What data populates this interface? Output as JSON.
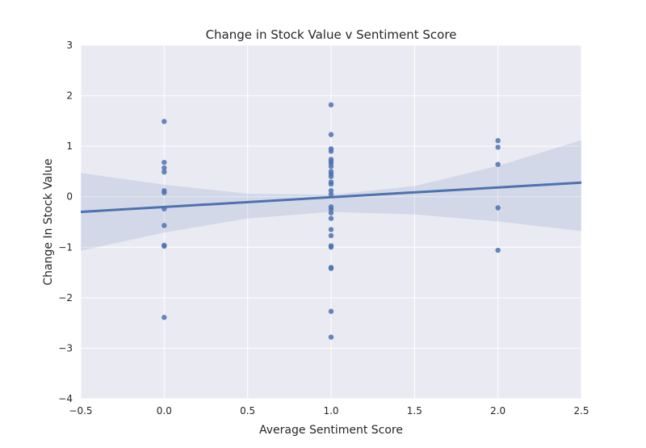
{
  "chart_data": {
    "type": "scatter",
    "title": "Change in Stock Value v Sentiment Score",
    "xlabel": "Average Sentiment Score",
    "ylabel": "Change In Stock Value",
    "xlim": [
      -0.5,
      2.5
    ],
    "ylim": [
      -4,
      3
    ],
    "x_ticks": [
      -0.5,
      0.0,
      0.5,
      1.0,
      1.5,
      2.0,
      2.5
    ],
    "x_tick_labels": [
      "−0.5",
      "0.0",
      "0.5",
      "1.0",
      "1.5",
      "2.0",
      "2.5"
    ],
    "y_ticks": [
      -4,
      -3,
      -2,
      -1,
      0,
      1,
      2,
      3
    ],
    "y_tick_labels": [
      "−4",
      "−3",
      "−2",
      "−1",
      "0",
      "1",
      "2",
      "3"
    ],
    "grid": true,
    "colors": {
      "background": "#eaeaf2",
      "grid": "#ffffff",
      "points": "#4c72b0",
      "fit_line": "#4c72b0",
      "ci_band": "#4c72b0"
    },
    "points": [
      {
        "x": 0,
        "y": 1.49
      },
      {
        "x": 0,
        "y": 0.68
      },
      {
        "x": 0,
        "y": 0.57
      },
      {
        "x": 0,
        "y": 0.49
      },
      {
        "x": 0,
        "y": 0.12
      },
      {
        "x": 0,
        "y": 0.08
      },
      {
        "x": 0,
        "y": -0.24
      },
      {
        "x": 0,
        "y": -0.57
      },
      {
        "x": 0,
        "y": -0.96
      },
      {
        "x": 0,
        "y": -0.98
      },
      {
        "x": 0,
        "y": -2.39
      },
      {
        "x": 1,
        "y": 1.82
      },
      {
        "x": 1,
        "y": 1.23
      },
      {
        "x": 1,
        "y": 0.95
      },
      {
        "x": 1,
        "y": 0.9
      },
      {
        "x": 1,
        "y": 0.74
      },
      {
        "x": 1,
        "y": 0.7
      },
      {
        "x": 1,
        "y": 0.66
      },
      {
        "x": 1,
        "y": 0.6
      },
      {
        "x": 1,
        "y": 0.5
      },
      {
        "x": 1,
        "y": 0.45
      },
      {
        "x": 1,
        "y": 0.4
      },
      {
        "x": 1,
        "y": 0.29
      },
      {
        "x": 1,
        "y": 0.25
      },
      {
        "x": 1,
        "y": 0.12
      },
      {
        "x": 1,
        "y": 0.05
      },
      {
        "x": 1,
        "y": -0.2
      },
      {
        "x": 1,
        "y": -0.25
      },
      {
        "x": 1,
        "y": -0.32
      },
      {
        "x": 1,
        "y": -0.43
      },
      {
        "x": 1,
        "y": -0.65
      },
      {
        "x": 1,
        "y": -0.77
      },
      {
        "x": 1,
        "y": -0.97
      },
      {
        "x": 1,
        "y": -1.0
      },
      {
        "x": 1,
        "y": -1.4
      },
      {
        "x": 1,
        "y": -1.42
      },
      {
        "x": 1,
        "y": -2.27
      },
      {
        "x": 1,
        "y": -2.78
      },
      {
        "x": 2,
        "y": 1.11
      },
      {
        "x": 2,
        "y": 0.98
      },
      {
        "x": 2,
        "y": 0.64
      },
      {
        "x": 2,
        "y": -0.22
      },
      {
        "x": 2,
        "y": -1.06
      }
    ],
    "regression_line": {
      "x": [
        -0.5,
        2.5
      ],
      "y": [
        -0.3,
        0.28
      ]
    },
    "confidence_band": {
      "x": [
        -0.5,
        0.0,
        0.5,
        1.0,
        1.5,
        2.0,
        2.5
      ],
      "upper": [
        0.47,
        0.24,
        0.06,
        0.04,
        0.21,
        0.61,
        1.12
      ],
      "lower": [
        -1.07,
        -0.71,
        -0.43,
        -0.3,
        -0.35,
        -0.49,
        -0.68
      ]
    }
  }
}
